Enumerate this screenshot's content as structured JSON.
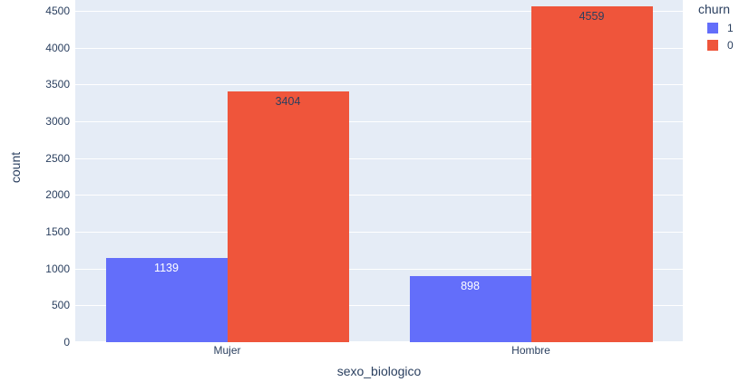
{
  "chart_data": {
    "type": "bar",
    "title": "",
    "xlabel": "sexo_biologico",
    "ylabel": "count",
    "categories": [
      "Mujer",
      "Hombre"
    ],
    "series": [
      {
        "name": "1",
        "color": "#636EFA",
        "label_text_color": "#ffffff",
        "values": [
          1139,
          898
        ]
      },
      {
        "name": "0",
        "color": "#EF553B",
        "label_text_color": "#2a3f5f",
        "values": [
          3404,
          4559
        ]
      }
    ],
    "bar_value_labels": [
      [
        1139,
        898
      ],
      [
        3404,
        4559
      ]
    ],
    "yticks": [
      0,
      500,
      1000,
      1500,
      2000,
      2500,
      3000,
      3500,
      4000,
      4500
    ],
    "ylim": [
      0,
      4650
    ],
    "grid": "horizontal",
    "legend": {
      "title": "churn",
      "position": "outside-top-right",
      "entries": [
        "1",
        "0"
      ]
    }
  },
  "colors": {
    "plot_background": "#E5ECF6",
    "paper_background": "#FFFFFF",
    "gridline": "#FFFFFF",
    "axis_text": "#2a3f5f"
  }
}
